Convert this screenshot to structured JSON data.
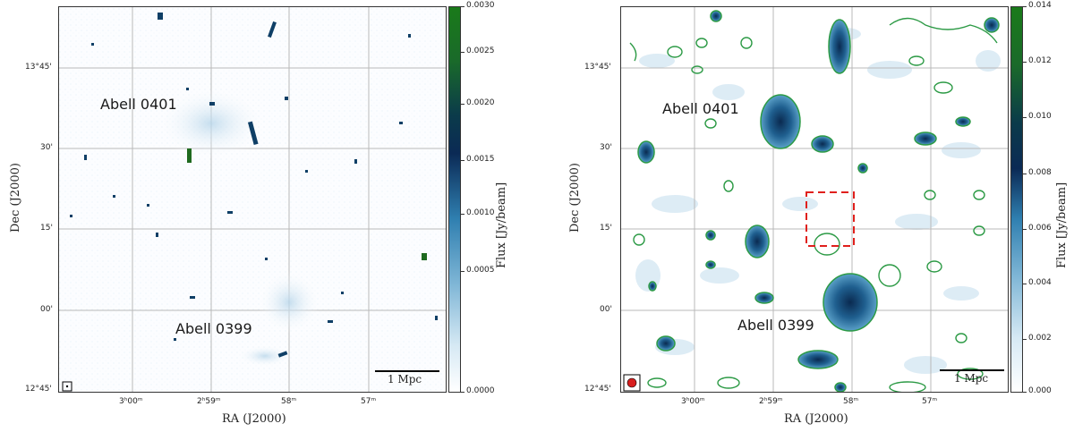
{
  "left_panel": {
    "xlabel": "RA (J2000)",
    "ylabel": "Dec (J2000)",
    "x_ticks": [
      "3ʰ00ᵐ",
      "2ʰ59ᵐ",
      "58ᵐ",
      "57ᵐ"
    ],
    "y_ticks": [
      "13°45'",
      "30'",
      "15'",
      "00'",
      "12°45'"
    ],
    "cluster_labels": [
      "Abell 0401",
      "Abell 0399"
    ],
    "scale_bar": "1 Mpc",
    "colorbar_title": "Flux [Jy/beam]",
    "colorbar_ticks": [
      "0.0030",
      "0.0025",
      "0.0020",
      "0.0015",
      "0.0010",
      "0.0005",
      "0.0000"
    ]
  },
  "right_panel": {
    "xlabel": "RA (J2000)",
    "ylabel": "Dec (J2000)",
    "x_ticks": [
      "3ʰ00ᵐ",
      "2ʰ59ᵐ",
      "58ᵐ",
      "57ᵐ"
    ],
    "y_ticks": [
      "13°45'",
      "30'",
      "15'",
      "00'",
      "12°45'"
    ],
    "cluster_labels": [
      "Abell 0401",
      "Abell 0399"
    ],
    "scale_bar": "1 Mpc",
    "colorbar_title": "Flux [Jy/beam]",
    "colorbar_ticks": [
      "0.014",
      "0.012",
      "0.010",
      "0.008",
      "0.006",
      "0.004",
      "0.002",
      "0.000"
    ]
  },
  "colors": {
    "colormap_low": "#ffffff",
    "colormap_mid": "#2f7fb0",
    "colormap_dark": "#0b2a55",
    "colormap_high": "#1a7a1a",
    "contour": "#2c9a45",
    "highlight_box": "#e0201c",
    "beam_marker": "#d81e1e"
  }
}
